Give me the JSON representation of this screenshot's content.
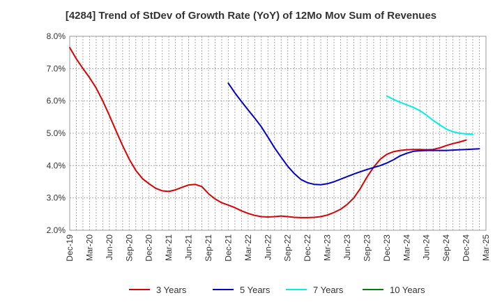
{
  "chart_data": {
    "type": "line",
    "title": "[4284]  Trend of StDev of Growth Rate (YoY) of 12Mo Mov Sum of Revenues",
    "xlabel": "",
    "ylabel": "",
    "ylim": [
      2.0,
      8.0
    ],
    "y_ticks": [
      "2.0%",
      "3.0%",
      "4.0%",
      "5.0%",
      "6.0%",
      "7.0%",
      "8.0%"
    ],
    "y_tick_values": [
      2,
      3,
      4,
      5,
      6,
      7,
      8
    ],
    "x_ticks": [
      "Dec-19",
      "Mar-20",
      "Jun-20",
      "Sep-20",
      "Dec-20",
      "Mar-21",
      "Jun-21",
      "Sep-21",
      "Dec-21",
      "Mar-22",
      "Jun-22",
      "Sep-22",
      "Dec-22",
      "Mar-23",
      "Jun-23",
      "Sep-23",
      "Dec-23",
      "Mar-24",
      "Jun-24",
      "Sep-24",
      "Dec-24",
      "Mar-25"
    ],
    "grid": true,
    "legend_position": "bottom",
    "series": [
      {
        "name": "3 Years",
        "color": "#dd0000",
        "start_month_index": 0,
        "values": [
          7.65,
          7.3,
          7.0,
          6.72,
          6.4,
          6.0,
          5.55,
          5.08,
          4.62,
          4.2,
          3.85,
          3.6,
          3.44,
          3.3,
          3.22,
          3.2,
          3.25,
          3.33,
          3.4,
          3.42,
          3.35,
          3.13,
          2.97,
          2.85,
          2.78,
          2.7,
          2.6,
          2.52,
          2.46,
          2.42,
          2.41,
          2.42,
          2.44,
          2.42,
          2.4,
          2.39,
          2.39,
          2.4,
          2.42,
          2.47,
          2.55,
          2.65,
          2.8,
          3.0,
          3.3,
          3.65,
          3.95,
          4.2,
          4.35,
          4.43,
          4.47,
          4.49,
          4.5,
          4.5,
          4.49,
          4.5,
          4.55,
          4.62,
          4.68,
          4.73,
          4.79
        ]
      },
      {
        "name": "5 Years",
        "color": "#0000cc",
        "start_month_index": 24,
        "values": [
          6.55,
          6.25,
          5.98,
          5.72,
          5.47,
          5.2,
          4.88,
          4.55,
          4.26,
          3.98,
          3.75,
          3.57,
          3.47,
          3.42,
          3.41,
          3.44,
          3.5,
          3.58,
          3.66,
          3.74,
          3.81,
          3.88,
          3.94,
          4.0,
          4.08,
          4.18,
          4.3,
          4.38,
          4.44,
          4.46,
          4.47,
          4.47,
          4.47,
          4.47,
          4.48,
          4.49,
          4.5,
          4.51,
          4.52
        ]
      },
      {
        "name": "7 Years",
        "color": "#00eeee",
        "start_month_index": 48,
        "values": [
          6.15,
          6.05,
          5.96,
          5.88,
          5.8,
          5.7,
          5.56,
          5.4,
          5.26,
          5.13,
          5.05,
          5.0,
          4.98,
          4.97
        ]
      },
      {
        "name": "10 Years",
        "color": "#008000",
        "start_month_index": 0,
        "values": []
      }
    ]
  }
}
